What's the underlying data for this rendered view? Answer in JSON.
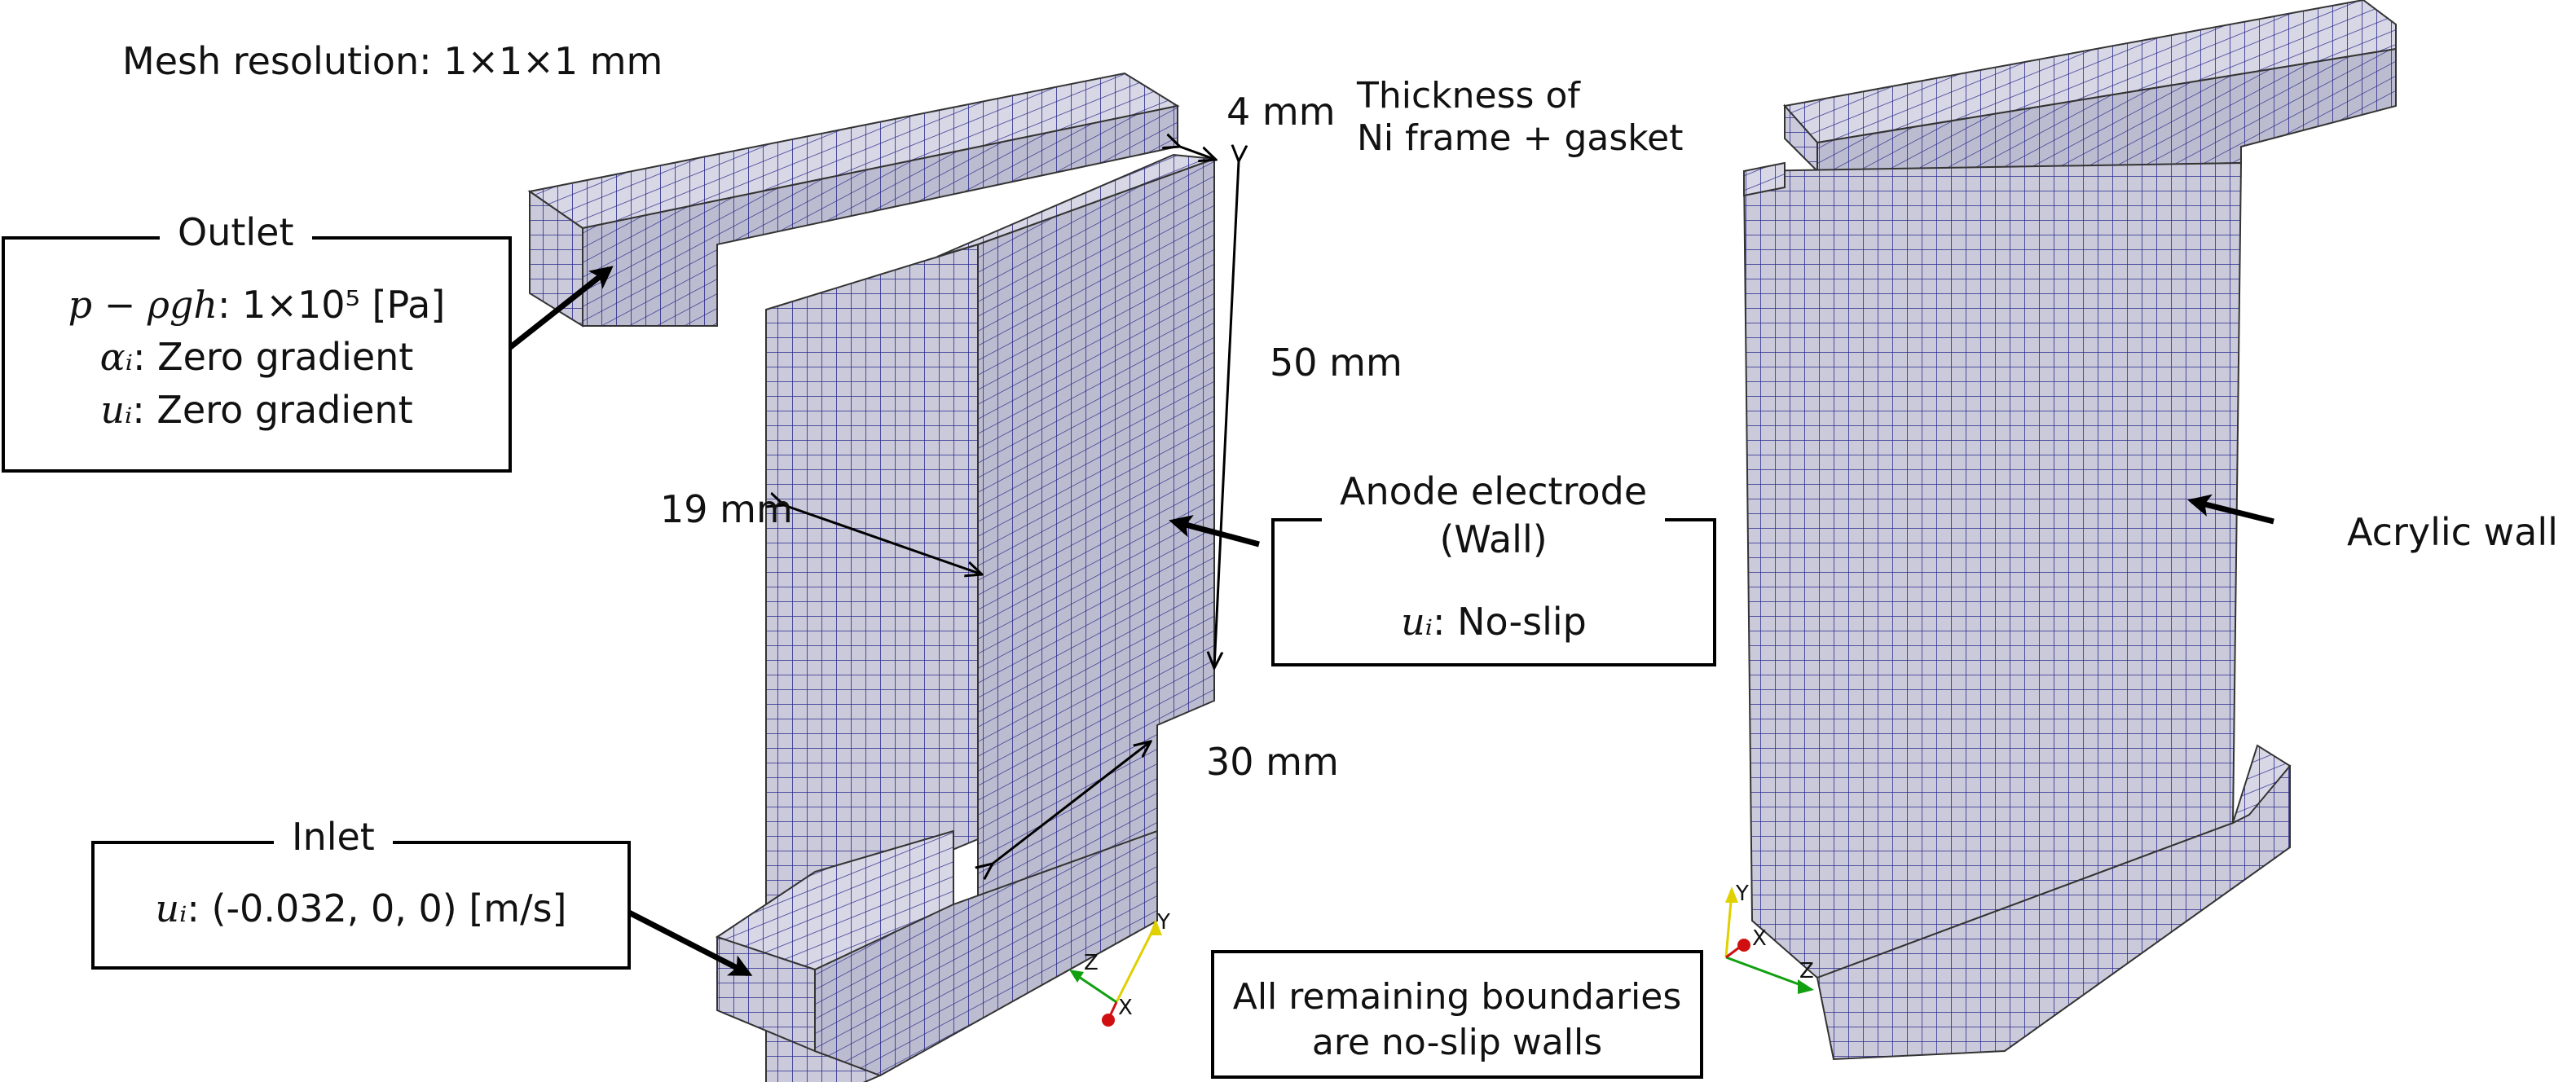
{
  "mesh_resolution": "Mesh resolution: 1×1×1 mm",
  "dimensions": {
    "thickness_value": "4 mm",
    "thickness_label_line1": "Thickness of",
    "thickness_label_line2": "Ni frame + gasket",
    "height": "50 mm",
    "width": "19 mm",
    "depth": "30 mm"
  },
  "outlet": {
    "title": "Outlet",
    "p_symbol": "p − ρgh",
    "p_value": ": 1×10⁵ [Pa]",
    "alpha_symbol": "αᵢ",
    "alpha_value": ": Zero gradient",
    "u_symbol": "uᵢ",
    "u_value": ": Zero gradient"
  },
  "inlet": {
    "title": "Inlet",
    "u_symbol": "uᵢ",
    "u_value": ": (-0.032, 0, 0) [m/s]"
  },
  "anode": {
    "title_line1": "Anode electrode",
    "title_line2": "(Wall)",
    "u_symbol": "uᵢ",
    "u_value": ": No-slip"
  },
  "acrylic": {
    "label": "Acrylic wall"
  },
  "remaining": {
    "line1": "All remaining boundaries",
    "line2": "are no-slip walls"
  },
  "axes": {
    "x": "X",
    "y": "Y",
    "z": "Z"
  },
  "colors": {
    "mesh_fill_top": "#d6d6e4",
    "mesh_fill_front": "#c9c9da",
    "mesh_fill_side": "#b8b8cc",
    "mesh_line": "#2b2b8c",
    "axis_x": "#d01010",
    "axis_y": "#e0d000",
    "axis_z": "#10a010"
  }
}
